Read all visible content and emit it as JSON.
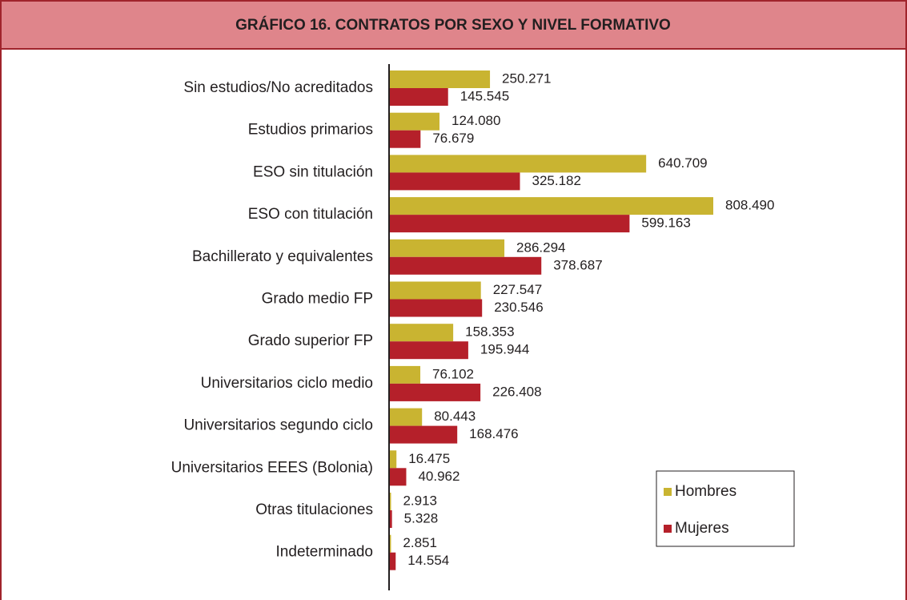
{
  "chart_data": {
    "type": "bar",
    "orientation": "horizontal",
    "title": "GRÁFICO 16. CONTRATOS POR SEXO Y NIVEL FORMATIVO",
    "categories": [
      "Sin estudios/No acreditados",
      "Estudios primarios",
      "ESO sin titulación",
      "ESO con titulación",
      "Bachillerato y equivalentes",
      "Grado medio FP",
      "Grado superior FP",
      "Universitarios ciclo medio",
      "Universitarios segundo ciclo",
      "Universitarios EEES (Bolonia)",
      "Otras titulaciones",
      "Indeterminado"
    ],
    "series": [
      {
        "name": "Hombres",
        "color": "#c9b431",
        "values": [
          250271,
          124080,
          640709,
          808490,
          286294,
          227547,
          158353,
          76102,
          80443,
          16475,
          2913,
          2851
        ],
        "value_labels": [
          "250.271",
          "124.080",
          "640.709",
          "808.490",
          "286.294",
          "227.547",
          "158.353",
          "76.102",
          "80.443",
          "16.475",
          "2.913",
          "2.851"
        ]
      },
      {
        "name": "Mujeres",
        "color": "#b5202a",
        "values": [
          145545,
          76679,
          325182,
          599163,
          378687,
          230546,
          195944,
          226408,
          168476,
          40962,
          5328,
          14554
        ],
        "value_labels": [
          "145.545",
          "76.679",
          "325.182",
          "599.163",
          "378.687",
          "230.546",
          "195.944",
          "226.408",
          "168.476",
          "40.962",
          "5.328",
          "14.554"
        ]
      }
    ]
  }
}
